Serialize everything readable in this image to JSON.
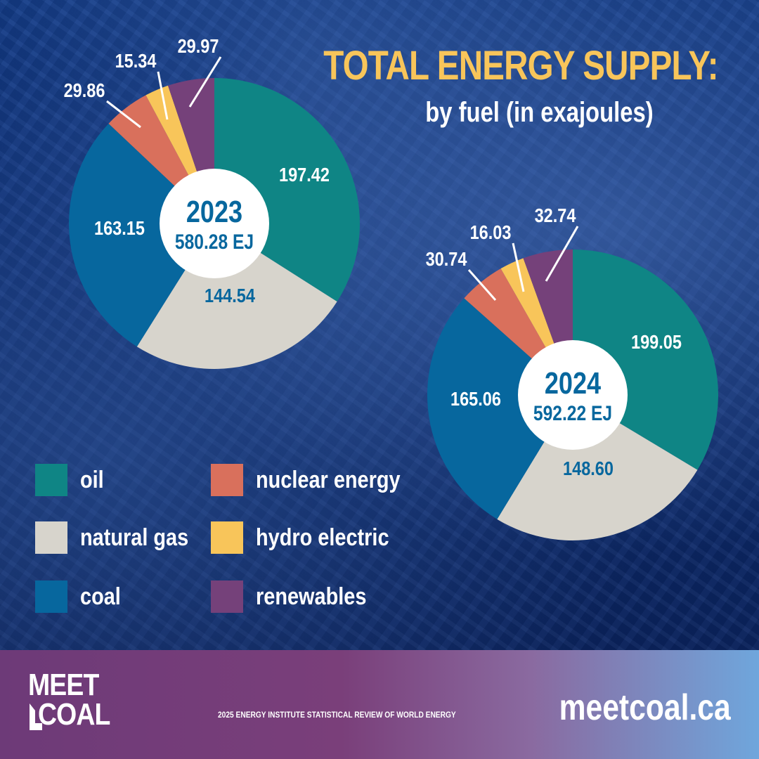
{
  "title": "TOTAL ENERGY SUPPLY:",
  "subtitle": "by fuel (in exajoules)",
  "colors": {
    "oil": "#0f8585",
    "natural_gas": "#d7d4cc",
    "coal": "#07679e",
    "nuclear_energy": "#d9705c",
    "hydro_electric": "#f8c55a",
    "renewables": "#75417a",
    "title": "#f8c55a",
    "center_text": "#07679e"
  },
  "legend": [
    {
      "key": "oil",
      "label": "oil"
    },
    {
      "key": "natural_gas",
      "label": "natural gas"
    },
    {
      "key": "coal",
      "label": "coal"
    },
    {
      "key": "nuclear_energy",
      "label": "nuclear energy"
    },
    {
      "key": "hydro_electric",
      "label": "hydro electric"
    },
    {
      "key": "renewables",
      "label": "renewables"
    }
  ],
  "chart_data": [
    {
      "type": "pie",
      "title": "2023",
      "total_label": "580.28 EJ",
      "categories": [
        "oil",
        "natural gas",
        "coal",
        "nuclear energy",
        "hydro electric",
        "renewables"
      ],
      "values": [
        197.42,
        144.54,
        163.15,
        29.86,
        15.34,
        29.97
      ],
      "labels": [
        "197.42",
        "144.54",
        "163.15",
        "29.86",
        "15.34",
        "29.97"
      ]
    },
    {
      "type": "pie",
      "title": "2024",
      "total_label": "592.22 EJ",
      "categories": [
        "oil",
        "natural gas",
        "coal",
        "nuclear energy",
        "hydro electric",
        "renewables"
      ],
      "values": [
        199.05,
        148.6,
        165.06,
        30.74,
        16.03,
        32.74
      ],
      "labels": [
        "199.05",
        "148.60",
        "165.06",
        "30.74",
        "16.03",
        "32.74"
      ]
    }
  ],
  "footer": {
    "logo_line1": "MEET",
    "logo_line2": "COAL",
    "source": "2025 ENERGY INSTITUTE STATISTICAL REVIEW OF WORLD ENERGY",
    "website": "meetcoal.ca"
  }
}
